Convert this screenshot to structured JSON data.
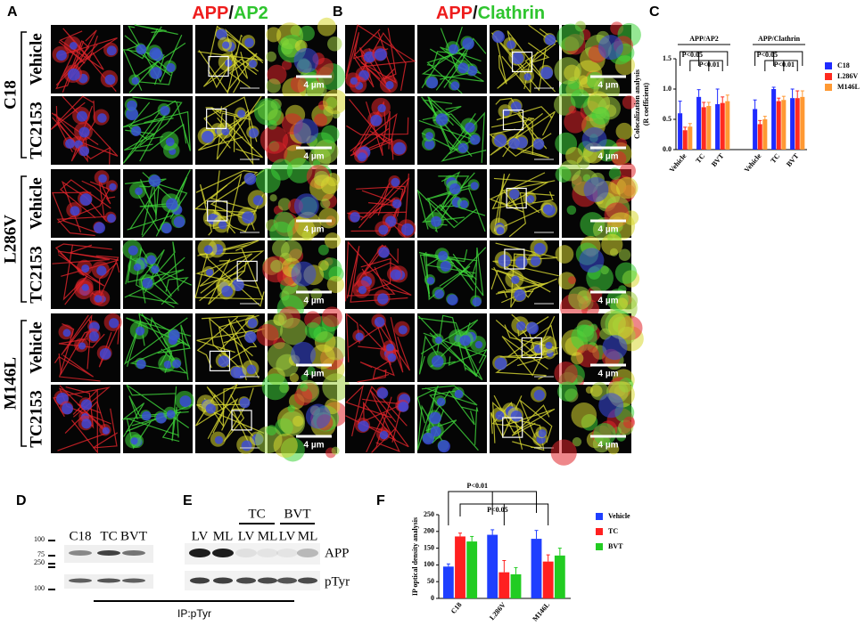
{
  "panel_labels": [
    "A",
    "B",
    "C",
    "D",
    "E",
    "F"
  ],
  "panel_a": {
    "title": [
      "APP",
      "/",
      "AP2"
    ],
    "groups": [
      {
        "name": "C18",
        "rows": [
          "Vehicle",
          "TC2153"
        ]
      },
      {
        "name": "L286V",
        "rows": [
          "Vehicle",
          "TC2153"
        ]
      },
      {
        "name": "M146L",
        "rows": [
          "Vehicle",
          "TC2153"
        ]
      }
    ]
  },
  "panel_b": {
    "title": [
      "APP",
      "/",
      "Clathrin"
    ]
  },
  "scale_bar_label": "4 µm",
  "panel_d": {
    "markers": [
      100,
      75,
      250,
      100
    ],
    "lanes": [
      "C18",
      "TC",
      "BVT"
    ],
    "ip_label": "IP:pTyr"
  },
  "panel_e": {
    "treatments": [
      "TC",
      "BVT"
    ],
    "lanes": [
      "LV",
      "ML",
      "LV",
      "ML",
      "LV",
      "ML"
    ],
    "blots": [
      "APP",
      "pTyr"
    ]
  },
  "chart_data": [
    {
      "type": "bar",
      "y_label": [
        "Colocalization analysis",
        "(R coefficient)"
      ],
      "groups": [
        "APP/AP2",
        "APP/Clathrin"
      ],
      "categories": [
        "Vehicle",
        "TC",
        "BVT",
        "Vehicle",
        "TC",
        "BVT"
      ],
      "series": [
        {
          "name": "C18",
          "color": "#1f2bff",
          "values": [
            0.6,
            0.87,
            0.75,
            0.67,
            1.0,
            0.85
          ],
          "errors": [
            0.2,
            0.12,
            0.25,
            0.15,
            0.03,
            0.15
          ]
        },
        {
          "name": "L286V",
          "color": "#ff2a1f",
          "values": [
            0.32,
            0.7,
            0.77,
            0.42,
            0.8,
            0.85
          ],
          "errors": [
            0.05,
            0.08,
            0.1,
            0.06,
            0.05,
            0.12
          ]
        },
        {
          "name": "M146L",
          "color": "#ff9933",
          "values": [
            0.38,
            0.72,
            0.8,
            0.5,
            0.82,
            0.87
          ],
          "errors": [
            0.05,
            0.06,
            0.1,
            0.05,
            0.06,
            0.1
          ]
        }
      ],
      "ylim": [
        0,
        1.5
      ],
      "yticks": [
        {
          "value": 0,
          "label": "0.0"
        },
        {
          "value": 0.5,
          "label": "0.5"
        },
        {
          "value": 1,
          "label": "1.0"
        },
        {
          "value": 1.5,
          "label": "1.5"
        }
      ],
      "annotations": [
        "P<0.05",
        "P<0.01",
        "P<0.05",
        "P<0.01"
      ]
    },
    {
      "type": "bar",
      "y_label": [
        "IP optical density analysis"
      ],
      "categories": [
        "C18",
        "L286V",
        "M146L"
      ],
      "series": [
        {
          "name": "Vehicle",
          "color": "#1f3fff",
          "values": [
            95,
            190,
            178
          ],
          "errors": [
            8,
            15,
            25
          ]
        },
        {
          "name": "TC",
          "color": "#ff2020",
          "values": [
            185,
            78,
            110
          ],
          "errors": [
            10,
            35,
            20
          ]
        },
        {
          "name": "BVT",
          "color": "#22cc22",
          "values": [
            170,
            72,
            128
          ],
          "errors": [
            15,
            20,
            22
          ]
        }
      ],
      "ylim": [
        0,
        250
      ],
      "yticks": [
        0,
        50,
        100,
        150,
        200,
        250
      ],
      "annotations": [
        "P<0.01",
        "P<0.05"
      ]
    }
  ]
}
